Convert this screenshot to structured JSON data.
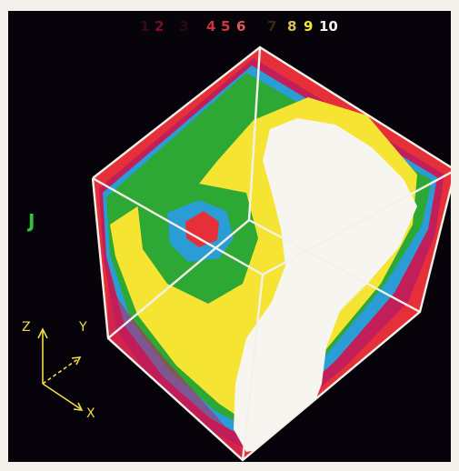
{
  "legend": {
    "labels": [
      "1",
      "2",
      "3",
      "4",
      "5",
      "6",
      "7",
      "8",
      "9",
      "10"
    ],
    "colors": [
      "#3a0a14",
      "#7a1020",
      "#2a0a16",
      "#c8323a",
      "#d03a40",
      "#e05858",
      "#3a2a10",
      "#d8c05a",
      "#f5e431",
      "#f4f1ea"
    ]
  },
  "side_mark": {
    "text": "J",
    "color": "#33c03a"
  },
  "axes": {
    "z_label": "Z",
    "y_label": "Y",
    "x_label": "X",
    "color": "#f0dc4a"
  },
  "colors": {
    "background": "#07030a",
    "edge": "#f4f1ea",
    "white_region": "#f7f5ef",
    "yellow_region": "#f5e431",
    "green_region": "#2da834",
    "blue_region": "#2a9cd6",
    "red_region": "#e5303a",
    "magenta_region": "#c21e5a"
  }
}
